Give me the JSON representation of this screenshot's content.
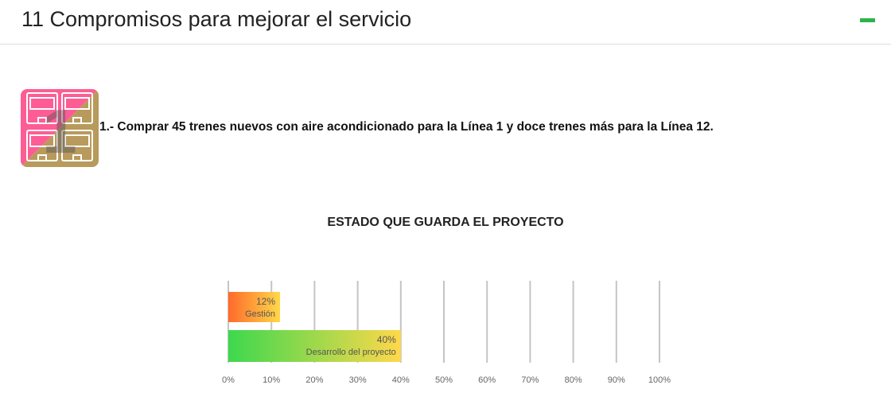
{
  "header": {
    "title": "11 Compromisos para mejorar el servicio",
    "collapse_icon": "minus-icon",
    "collapse_color": "#2db34a"
  },
  "commitment": {
    "icon": "trains-icon",
    "icon_number": "1",
    "text": "1.- Comprar 45 trenes nuevos con aire acondicionado para la Línea 1 y doce trenes más para la Línea 12."
  },
  "chart_data": {
    "type": "bar",
    "orientation": "horizontal",
    "title": "ESTADO QUE GUARDA EL PROYECTO",
    "categories": [
      "Gestión",
      "Desarrollo del proyecto"
    ],
    "values": [
      12,
      40
    ],
    "value_labels": [
      "12%",
      "40%"
    ],
    "xlim": [
      0,
      100
    ],
    "x_ticks": [
      "0%",
      "10%",
      "20%",
      "30%",
      "40%",
      "50%",
      "60%",
      "70%",
      "80%",
      "90%",
      "100%"
    ],
    "grid": true,
    "colors": [
      [
        "#ff6a2a",
        "#ffd84a"
      ],
      [
        "#3dd84e",
        "#ffd84a"
      ]
    ]
  }
}
